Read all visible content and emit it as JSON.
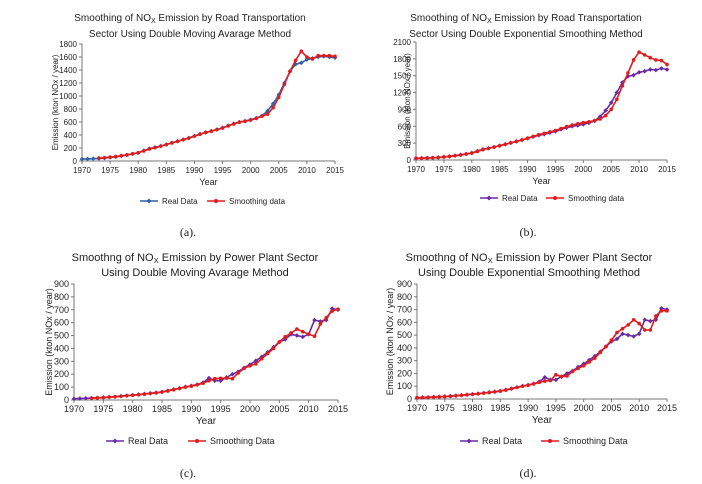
{
  "colors": {
    "real": "#2e5fa8",
    "real_purple": "#6a2aa6",
    "smooth": "#e01c1c",
    "axis": "#777777"
  },
  "captions": [
    "(a).",
    "(b).",
    "(c).",
    "(d)."
  ],
  "chart_data": [
    {
      "type": "line",
      "title_line1_pre": "Smoothing of NO",
      "title_sub": "X",
      "title_line1_post": " Emission by Road Transportation",
      "title_line2": "Sector Using Double Moving Avarage Method",
      "xlabel": "Year",
      "ylabel": "Emission (kton NOx / year)",
      "xlim": [
        1970,
        2015
      ],
      "ylim": [
        0,
        1800
      ],
      "xticks": [
        1970,
        1975,
        1980,
        1985,
        1990,
        1995,
        2000,
        2005,
        2010,
        2015
      ],
      "yticks": [
        0,
        200,
        400,
        600,
        800,
        1000,
        1200,
        1400,
        1600,
        1800
      ],
      "legend_position": "bottom",
      "x": [
        1970,
        1971,
        1972,
        1973,
        1974,
        1975,
        1976,
        1977,
        1978,
        1979,
        1980,
        1981,
        1982,
        1983,
        1984,
        1985,
        1986,
        1987,
        1988,
        1989,
        1990,
        1991,
        1992,
        1993,
        1994,
        1995,
        1996,
        1997,
        1998,
        1999,
        2000,
        2001,
        2002,
        2003,
        2004,
        2005,
        2006,
        2007,
        2008,
        2009,
        2010,
        2011,
        2012,
        2013,
        2014,
        2015
      ],
      "series": [
        {
          "name": "Real Data",
          "color_key": "real",
          "values": [
            30,
            32,
            35,
            40,
            45,
            55,
            65,
            78,
            92,
            108,
            125,
            160,
            190,
            210,
            230,
            255,
            280,
            305,
            330,
            355,
            385,
            415,
            440,
            460,
            485,
            510,
            545,
            575,
            600,
            615,
            635,
            660,
            695,
            770,
            880,
            1020,
            1200,
            1380,
            1490,
            1510,
            1560,
            1580,
            1600,
            1610,
            1600,
            1590
          ]
        },
        {
          "name": "Smoothing data",
          "color_key": "smooth",
          "values": [
            null,
            null,
            null,
            45,
            50,
            58,
            68,
            80,
            95,
            110,
            128,
            155,
            185,
            205,
            228,
            252,
            278,
            302,
            328,
            352,
            382,
            412,
            438,
            458,
            482,
            508,
            540,
            570,
            598,
            612,
            630,
            655,
            690,
            720,
            820,
            980,
            1180,
            1380,
            1550,
            1690,
            1600,
            1570,
            1620,
            1620,
            1620,
            1610
          ]
        }
      ]
    },
    {
      "type": "line",
      "title_line1_pre": "Smoothing of NO",
      "title_sub": "X",
      "title_line1_post": " Emission by Road Transportation",
      "title_line2": "Sector Using Double Exponential Smoothing Method",
      "xlabel": "Year",
      "ylabel": "Emission (kton NOx / year)",
      "xlim": [
        1970,
        2015
      ],
      "ylim": [
        0,
        2100
      ],
      "xticks": [
        1970,
        1975,
        1980,
        1985,
        1990,
        1995,
        2000,
        2005,
        2010,
        2015
      ],
      "yticks": [
        0,
        300,
        600,
        900,
        1200,
        1500,
        1800,
        2100
      ],
      "legend_position": "bottom",
      "x": [
        1970,
        1971,
        1972,
        1973,
        1974,
        1975,
        1976,
        1977,
        1978,
        1979,
        1980,
        1981,
        1982,
        1983,
        1984,
        1985,
        1986,
        1987,
        1988,
        1989,
        1990,
        1991,
        1992,
        1993,
        1994,
        1995,
        1996,
        1997,
        1998,
        1999,
        2000,
        2001,
        2002,
        2003,
        2004,
        2005,
        2006,
        2007,
        2008,
        2009,
        2010,
        2011,
        2012,
        2013,
        2014,
        2015
      ],
      "series": [
        {
          "name": "Real Data",
          "color_key": "real_purple",
          "values": [
            30,
            32,
            35,
            40,
            45,
            55,
            65,
            78,
            92,
            108,
            125,
            160,
            190,
            210,
            230,
            255,
            280,
            305,
            330,
            355,
            385,
            415,
            440,
            460,
            485,
            510,
            545,
            575,
            600,
            615,
            635,
            660,
            695,
            770,
            880,
            1020,
            1200,
            1380,
            1490,
            1510,
            1560,
            1580,
            1610,
            1600,
            1630,
            1610
          ]
        },
        {
          "name": "Smoothing data",
          "color_key": "smooth",
          "values": [
            30,
            33,
            36,
            40,
            46,
            54,
            64,
            76,
            90,
            106,
            123,
            152,
            185,
            207,
            230,
            254,
            280,
            305,
            332,
            358,
            388,
            420,
            450,
            475,
            500,
            525,
            560,
            592,
            622,
            645,
            665,
            680,
            700,
            730,
            790,
            900,
            1080,
            1320,
            1550,
            1780,
            1920,
            1870,
            1820,
            1780,
            1770,
            1700
          ]
        }
      ]
    },
    {
      "type": "line",
      "title_line1_pre": "Smoothng of NO",
      "title_sub": "X",
      "title_line1_post": " Emission by Power Plant Sector",
      "title_line2": "Using Double Moving Avarage Method",
      "xlabel": "Year",
      "ylabel": "Emission (kton NOx / year)",
      "xlim": [
        1970,
        2015
      ],
      "ylim": [
        0,
        900
      ],
      "xticks": [
        1970,
        1975,
        1980,
        1985,
        1990,
        1995,
        2000,
        2005,
        2010,
        2015
      ],
      "yticks": [
        0,
        100,
        200,
        300,
        400,
        500,
        600,
        700,
        800,
        900
      ],
      "legend_position": "bottom",
      "x": [
        1970,
        1971,
        1972,
        1973,
        1974,
        1975,
        1976,
        1977,
        1978,
        1979,
        1980,
        1981,
        1982,
        1983,
        1984,
        1985,
        1986,
        1987,
        1988,
        1989,
        1990,
        1991,
        1992,
        1993,
        1994,
        1995,
        1996,
        1997,
        1998,
        1999,
        2000,
        2001,
        2002,
        2003,
        2004,
        2005,
        2006,
        2007,
        2008,
        2009,
        2010,
        2011,
        2012,
        2013,
        2014,
        2015
      ],
      "series": [
        {
          "name": "Real Data",
          "color_key": "real_purple",
          "values": [
            10,
            12,
            13,
            15,
            17,
            20,
            23,
            26,
            30,
            34,
            38,
            42,
            47,
            52,
            57,
            63,
            72,
            82,
            92,
            102,
            110,
            120,
            135,
            170,
            150,
            150,
            175,
            200,
            220,
            250,
            275,
            305,
            335,
            370,
            410,
            450,
            470,
            510,
            500,
            490,
            510,
            620,
            610,
            620,
            710,
            700
          ]
        },
        {
          "name": "Smoothing Data",
          "color_key": "smooth",
          "values": [
            null,
            null,
            null,
            14,
            16,
            19,
            22,
            25,
            29,
            33,
            37,
            41,
            46,
            51,
            56,
            62,
            70,
            80,
            90,
            100,
            108,
            118,
            130,
            150,
            165,
            168,
            170,
            165,
            210,
            245,
            265,
            280,
            320,
            360,
            400,
            450,
            490,
            520,
            550,
            530,
            510,
            495,
            590,
            640,
            690,
            705
          ]
        }
      ]
    },
    {
      "type": "line",
      "title_line1_pre": "Smoothng of NO",
      "title_sub": "X",
      "title_line1_post": " Emission by Power Plant Sector",
      "title_line2": "Using Double Exponential Smoothing Method",
      "xlabel": "Year",
      "ylabel": "Emission (kton NOx / year)",
      "xlim": [
        1970,
        2015
      ],
      "ylim": [
        0,
        900
      ],
      "xticks": [
        1970,
        1975,
        1980,
        1985,
        1990,
        1995,
        2000,
        2005,
        2010,
        2015
      ],
      "yticks": [
        0,
        100,
        200,
        300,
        400,
        500,
        600,
        700,
        800,
        900
      ],
      "legend_position": "bottom",
      "x": [
        1970,
        1971,
        1972,
        1973,
        1974,
        1975,
        1976,
        1977,
        1978,
        1979,
        1980,
        1981,
        1982,
        1983,
        1984,
        1985,
        1986,
        1987,
        1988,
        1989,
        1990,
        1991,
        1992,
        1993,
        1994,
        1995,
        1996,
        1997,
        1998,
        1999,
        2000,
        2001,
        2002,
        2003,
        2004,
        2005,
        2006,
        2007,
        2008,
        2009,
        2010,
        2011,
        2012,
        2013,
        2014,
        2015
      ],
      "series": [
        {
          "name": "Real Data",
          "color_key": "real_purple",
          "values": [
            10,
            12,
            13,
            15,
            17,
            20,
            23,
            26,
            30,
            34,
            38,
            42,
            47,
            52,
            57,
            63,
            72,
            82,
            92,
            102,
            110,
            120,
            135,
            170,
            150,
            150,
            175,
            200,
            220,
            250,
            275,
            305,
            335,
            370,
            410,
            450,
            470,
            510,
            500,
            490,
            510,
            620,
            610,
            620,
            710,
            700
          ]
        },
        {
          "name": "Smoothing Data",
          "color_key": "smooth",
          "values": [
            10,
            11,
            13,
            15,
            17,
            19,
            22,
            25,
            29,
            33,
            37,
            41,
            46,
            51,
            56,
            62,
            70,
            80,
            90,
            100,
            108,
            118,
            130,
            140,
            145,
            190,
            175,
            180,
            215,
            240,
            260,
            290,
            320,
            365,
            410,
            460,
            520,
            550,
            580,
            620,
            590,
            540,
            540,
            650,
            690,
            690
          ]
        }
      ]
    }
  ]
}
